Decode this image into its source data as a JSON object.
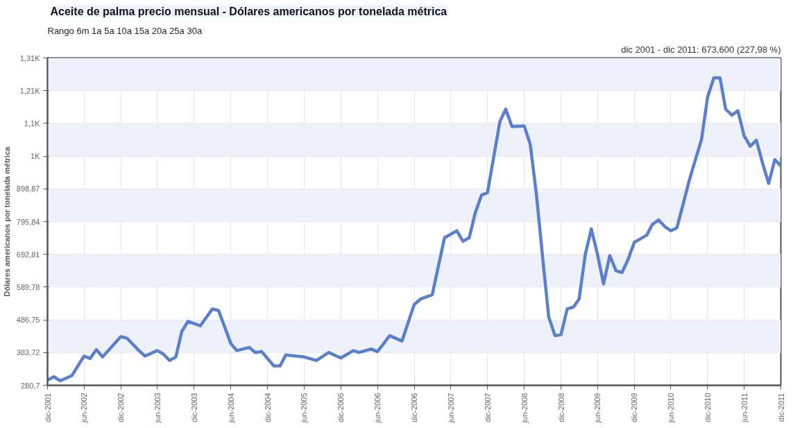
{
  "chart_data": {
    "type": "line",
    "title": "Aceite de palma precio mensual - Dólares americanos por tonelada métrica",
    "subtitle": "Rango 6m 1a 5a 10a 15a 20a 25a 30a",
    "annotations": [
      "dic 2001 - dic 2011: 673,600 (227,98 %)"
    ],
    "ylabel": "Dólares americanos por tonelada métrica",
    "x": [
      "2001-12",
      "2002-01",
      "2002-02",
      "2002-04",
      "2002-06",
      "2002-07",
      "2002-08",
      "2002-09",
      "2002-12",
      "2003-01",
      "2003-03",
      "2003-04",
      "2003-06",
      "2003-07",
      "2003-08",
      "2003-09",
      "2003-10",
      "2003-11",
      "2004-01",
      "2004-03",
      "2004-04",
      "2004-06",
      "2004-07",
      "2004-09",
      "2004-10",
      "2004-11",
      "2005-01",
      "2005-02",
      "2005-03",
      "2005-06",
      "2005-08",
      "2005-10",
      "2005-12",
      "2006-02",
      "2006-03",
      "2006-05",
      "2006-06",
      "2006-08",
      "2006-10",
      "2006-12",
      "2007-01",
      "2007-03",
      "2007-05",
      "2007-07",
      "2007-08",
      "2007-09",
      "2007-10",
      "2007-11",
      "2007-12",
      "2008-02",
      "2008-03",
      "2008-04",
      "2008-06",
      "2008-07",
      "2008-08",
      "2008-09",
      "2008-10",
      "2008-11",
      "2008-12",
      "2009-01",
      "2009-02",
      "2009-03",
      "2009-04",
      "2009-05",
      "2009-06",
      "2009-07",
      "2009-08",
      "2009-09",
      "2009-10",
      "2009-11",
      "2009-12",
      "2010-02",
      "2010-03",
      "2010-04",
      "2010-05",
      "2010-06",
      "2010-07",
      "2010-08",
      "2010-09",
      "2010-10",
      "2010-11",
      "2010-12",
      "2011-01",
      "2011-02",
      "2011-03",
      "2011-04",
      "2011-05",
      "2011-06",
      "2011-07",
      "2011-08",
      "2011-09",
      "2011-10",
      "2011-11",
      "2011-12"
    ],
    "series": [
      {
        "color": "#5b7fcf",
        "values": [
          297,
          308,
          295,
          311,
          373,
          365,
          393,
          370,
          434,
          429,
          390,
          373,
          390,
          379,
          359,
          370,
          451,
          482,
          468,
          521,
          516,
          412,
          390,
          400,
          384,
          387,
          342,
          342,
          376,
          370,
          359,
          384,
          367,
          390,
          384,
          395,
          387,
          437,
          420,
          535,
          552,
          566,
          745,
          767,
          734,
          745,
          823,
          879,
          887,
          1111,
          1150,
          1095,
          1097,
          1039,
          880,
          680,
          496,
          437,
          440,
          521,
          527,
          552,
          692,
          773,
          692,
          600,
          689,
          641,
          636,
          678,
          731,
          753,
          787,
          801,
          781,
          767,
          776,
          850,
          926,
          990,
          1055,
          1187,
          1248,
          1248,
          1150,
          1131,
          1145,
          1066,
          1033,
          1052,
          980,
          916,
          991,
          971
        ]
      }
    ],
    "xlim": [
      "2001-12",
      "2011-12"
    ],
    "xticks": [
      {
        "value": "2001-12",
        "label": "dic-2001"
      },
      {
        "value": "2002-06",
        "label": "jun-2002"
      },
      {
        "value": "2002-12",
        "label": "dic-2002"
      },
      {
        "value": "2003-06",
        "label": "jun-2003"
      },
      {
        "value": "2003-12",
        "label": "dic-2003"
      },
      {
        "value": "2004-06",
        "label": "jun-2004"
      },
      {
        "value": "2004-12",
        "label": "dic-2004"
      },
      {
        "value": "2005-06",
        "label": "jun-2005"
      },
      {
        "value": "2005-12",
        "label": "dic-2005"
      },
      {
        "value": "2006-06",
        "label": "jun-2006"
      },
      {
        "value": "2006-12",
        "label": "dic-2006"
      },
      {
        "value": "2007-06",
        "label": "jun-2007"
      },
      {
        "value": "2007-12",
        "label": "dic-2007"
      },
      {
        "value": "2008-06",
        "label": "jun-2008"
      },
      {
        "value": "2008-12",
        "label": "dic-2008"
      },
      {
        "value": "2009-06",
        "label": "jun-2009"
      },
      {
        "value": "2009-12",
        "label": "dic-2009"
      },
      {
        "value": "2010-06",
        "label": "jun-2010"
      },
      {
        "value": "2010-12",
        "label": "dic-2010"
      },
      {
        "value": "2011-06",
        "label": "jun-2011"
      },
      {
        "value": "2011-12",
        "label": "dic-2011"
      }
    ],
    "ylim": [
      280.7,
      1310.99
    ],
    "yticks": [
      {
        "value": 280.7,
        "label": "280,7"
      },
      {
        "value": 383.72,
        "label": "383,72"
      },
      {
        "value": 486.75,
        "label": "486,75"
      },
      {
        "value": 589.78,
        "label": "589,78"
      },
      {
        "value": 692.81,
        "label": "692,81"
      },
      {
        "value": 795.84,
        "label": "795,84"
      },
      {
        "value": 898.87,
        "label": "898,87"
      },
      {
        "value": 1001.9,
        "label": "1K"
      },
      {
        "value": 1104.93,
        "label": "1,1K"
      },
      {
        "value": 1207.96,
        "label": "1,21K"
      },
      {
        "value": 1310.99,
        "label": "1,31K"
      }
    ],
    "grid": true,
    "line_style": "solid",
    "marker": "none"
  }
}
